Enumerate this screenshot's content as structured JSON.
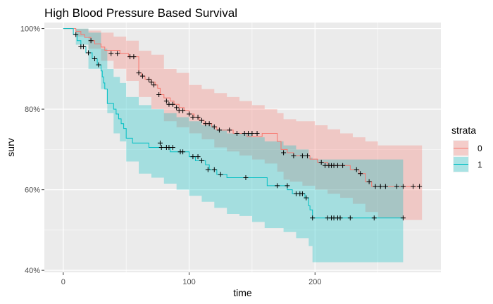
{
  "chart_data": {
    "type": "line",
    "title": "High Blood Pressure Based Survival",
    "xlabel": "time",
    "ylabel": "surv",
    "xlim": [
      -15,
      300
    ],
    "ylim": [
      0.395,
      1.015
    ],
    "x_ticks": [
      0,
      100,
      200
    ],
    "x_tick_labels": [
      "0",
      "100",
      "200"
    ],
    "y_ticks": [
      0.4,
      0.6,
      0.8,
      1.0
    ],
    "y_tick_labels": [
      "40%",
      "60%",
      "80%",
      "100%"
    ],
    "grid": true,
    "legend": {
      "title": "strata",
      "placement": "right",
      "entries": [
        {
          "label": "0",
          "color": "#F8766D"
        },
        {
          "label": "1",
          "color": "#00BFC4"
        }
      ]
    },
    "series": [
      {
        "name": "0",
        "color": "#F8766D",
        "steps": [
          [
            0,
            1.0
          ],
          [
            10,
            0.993
          ],
          [
            14,
            0.985
          ],
          [
            17,
            0.978
          ],
          [
            22,
            0.97
          ],
          [
            25,
            0.962
          ],
          [
            30,
            0.954
          ],
          [
            33,
            0.946
          ],
          [
            45,
            0.938
          ],
          [
            52,
            0.93
          ],
          [
            60,
            0.89
          ],
          [
            62,
            0.882
          ],
          [
            65,
            0.874
          ],
          [
            70,
            0.867
          ],
          [
            73,
            0.86
          ],
          [
            75,
            0.852
          ],
          [
            77,
            0.836
          ],
          [
            80,
            0.828
          ],
          [
            85,
            0.82
          ],
          [
            88,
            0.812
          ],
          [
            92,
            0.804
          ],
          [
            96,
            0.796
          ],
          [
            100,
            0.788
          ],
          [
            104,
            0.78
          ],
          [
            108,
            0.772
          ],
          [
            112,
            0.764
          ],
          [
            118,
            0.756
          ],
          [
            122,
            0.748
          ],
          [
            130,
            0.748
          ],
          [
            135,
            0.74
          ],
          [
            140,
            0.74
          ],
          [
            146,
            0.732
          ],
          [
            158,
            0.74
          ],
          [
            165,
            0.74
          ],
          [
            170,
            0.72
          ],
          [
            173,
            0.7
          ],
          [
            178,
            0.692
          ],
          [
            183,
            0.684
          ],
          [
            192,
            0.684
          ],
          [
            196,
            0.676
          ],
          [
            200,
            0.676
          ],
          [
            202,
            0.668
          ],
          [
            210,
            0.66
          ],
          [
            218,
            0.66
          ],
          [
            228,
            0.65
          ],
          [
            235,
            0.64
          ],
          [
            240,
            0.62
          ],
          [
            245,
            0.608
          ],
          [
            255,
            0.608
          ],
          [
            265,
            0.608
          ],
          [
            283,
            0.608
          ]
        ],
        "lower": [
          [
            0,
            1.0
          ],
          [
            10,
            0.98
          ],
          [
            20,
            0.95
          ],
          [
            30,
            0.92
          ],
          [
            40,
            0.9
          ],
          [
            50,
            0.87
          ],
          [
            60,
            0.83
          ],
          [
            70,
            0.8
          ],
          [
            80,
            0.77
          ],
          [
            90,
            0.755
          ],
          [
            100,
            0.74
          ],
          [
            110,
            0.725
          ],
          [
            120,
            0.705
          ],
          [
            130,
            0.695
          ],
          [
            140,
            0.685
          ],
          [
            150,
            0.675
          ],
          [
            160,
            0.665
          ],
          [
            170,
            0.645
          ],
          [
            175,
            0.625
          ],
          [
            180,
            0.62
          ],
          [
            190,
            0.61
          ],
          [
            200,
            0.6
          ],
          [
            210,
            0.59
          ],
          [
            220,
            0.58
          ],
          [
            230,
            0.565
          ],
          [
            240,
            0.545
          ],
          [
            250,
            0.53
          ],
          [
            270,
            0.525
          ],
          [
            285,
            0.525
          ]
        ],
        "upper": [
          [
            0,
            1.0
          ],
          [
            10,
            1.0
          ],
          [
            20,
            0.995
          ],
          [
            30,
            0.99
          ],
          [
            40,
            0.98
          ],
          [
            50,
            0.97
          ],
          [
            60,
            0.945
          ],
          [
            70,
            0.935
          ],
          [
            80,
            0.9
          ],
          [
            90,
            0.89
          ],
          [
            100,
            0.86
          ],
          [
            110,
            0.85
          ],
          [
            120,
            0.84
          ],
          [
            130,
            0.83
          ],
          [
            140,
            0.82
          ],
          [
            150,
            0.81
          ],
          [
            160,
            0.8
          ],
          [
            170,
            0.79
          ],
          [
            175,
            0.775
          ],
          [
            185,
            0.77
          ],
          [
            200,
            0.76
          ],
          [
            210,
            0.75
          ],
          [
            220,
            0.74
          ],
          [
            230,
            0.73
          ],
          [
            240,
            0.72
          ],
          [
            250,
            0.71
          ],
          [
            270,
            0.71
          ],
          [
            285,
            0.71
          ]
        ],
        "censored_x": [
          22,
          38,
          43,
          53,
          56,
          60,
          63,
          68,
          70,
          72,
          76,
          82,
          84,
          87,
          90,
          92,
          95,
          100,
          103,
          107,
          110,
          113,
          116,
          120,
          124,
          132,
          138,
          144,
          147,
          150,
          154,
          175,
          183,
          190,
          194,
          205,
          208,
          211,
          213,
          215,
          218,
          222,
          233,
          236,
          243,
          248,
          252,
          256,
          265,
          270,
          278,
          283
        ],
        "censored_y": [
          0.97,
          0.938,
          0.938,
          0.93,
          0.93,
          0.89,
          0.882,
          0.874,
          0.867,
          0.86,
          0.836,
          0.82,
          0.812,
          0.812,
          0.804,
          0.796,
          0.796,
          0.788,
          0.78,
          0.78,
          0.772,
          0.764,
          0.764,
          0.756,
          0.748,
          0.748,
          0.74,
          0.74,
          0.74,
          0.74,
          0.74,
          0.692,
          0.684,
          0.684,
          0.684,
          0.668,
          0.66,
          0.66,
          0.66,
          0.66,
          0.66,
          0.66,
          0.65,
          0.64,
          0.62,
          0.608,
          0.608,
          0.608,
          0.608,
          0.608,
          0.608,
          0.608
        ]
      },
      {
        "name": "1",
        "color": "#00BFC4",
        "steps": [
          [
            0,
            1.0
          ],
          [
            8,
            0.985
          ],
          [
            11,
            0.97
          ],
          [
            14,
            0.955
          ],
          [
            18,
            0.94
          ],
          [
            23,
            0.925
          ],
          [
            27,
            0.91
          ],
          [
            30,
            0.895
          ],
          [
            31,
            0.88
          ],
          [
            32,
            0.865
          ],
          [
            33,
            0.85
          ],
          [
            35,
            0.814
          ],
          [
            40,
            0.8
          ],
          [
            42,
            0.788
          ],
          [
            44,
            0.776
          ],
          [
            46,
            0.764
          ],
          [
            48,
            0.752
          ],
          [
            50,
            0.728
          ],
          [
            55,
            0.716
          ],
          [
            60,
            0.716
          ],
          [
            64,
            0.716
          ],
          [
            68,
            0.705
          ],
          [
            72,
            0.705
          ],
          [
            78,
            0.705
          ],
          [
            85,
            0.694
          ],
          [
            95,
            0.694
          ],
          [
            100,
            0.682
          ],
          [
            105,
            0.672
          ],
          [
            110,
            0.672
          ],
          [
            113,
            0.662
          ],
          [
            116,
            0.65
          ],
          [
            118,
            0.65
          ],
          [
            122,
            0.638
          ],
          [
            130,
            0.63
          ],
          [
            140,
            0.63
          ],
          [
            145,
            0.63
          ],
          [
            155,
            0.63
          ],
          [
            162,
            0.61
          ],
          [
            172,
            0.61
          ],
          [
            178,
            0.6
          ],
          [
            182,
            0.59
          ],
          [
            188,
            0.59
          ],
          [
            192,
            0.58
          ],
          [
            195,
            0.56
          ],
          [
            196,
            0.55
          ],
          [
            198,
            0.53
          ],
          [
            210,
            0.53
          ],
          [
            230,
            0.53
          ],
          [
            250,
            0.53
          ],
          [
            270,
            0.53
          ]
        ],
        "lower": [
          [
            0,
            1.0
          ],
          [
            10,
            0.96
          ],
          [
            20,
            0.9
          ],
          [
            30,
            0.85
          ],
          [
            35,
            0.79
          ],
          [
            40,
            0.74
          ],
          [
            45,
            0.72
          ],
          [
            50,
            0.67
          ],
          [
            60,
            0.64
          ],
          [
            70,
            0.63
          ],
          [
            80,
            0.615
          ],
          [
            90,
            0.6
          ],
          [
            100,
            0.585
          ],
          [
            110,
            0.57
          ],
          [
            120,
            0.555
          ],
          [
            130,
            0.54
          ],
          [
            140,
            0.535
          ],
          [
            150,
            0.52
          ],
          [
            160,
            0.505
          ],
          [
            175,
            0.495
          ],
          [
            185,
            0.48
          ],
          [
            195,
            0.46
          ],
          [
            198,
            0.42
          ],
          [
            210,
            0.42
          ],
          [
            230,
            0.42
          ],
          [
            250,
            0.42
          ],
          [
            270,
            0.42
          ]
        ],
        "upper": [
          [
            0,
            1.0
          ],
          [
            10,
            1.0
          ],
          [
            20,
            0.99
          ],
          [
            30,
            0.95
          ],
          [
            35,
            0.9
          ],
          [
            40,
            0.88
          ],
          [
            45,
            0.865
          ],
          [
            50,
            0.83
          ],
          [
            60,
            0.81
          ],
          [
            70,
            0.8
          ],
          [
            80,
            0.79
          ],
          [
            90,
            0.78
          ],
          [
            100,
            0.77
          ],
          [
            110,
            0.76
          ],
          [
            120,
            0.75
          ],
          [
            130,
            0.74
          ],
          [
            140,
            0.74
          ],
          [
            150,
            0.73
          ],
          [
            160,
            0.72
          ],
          [
            175,
            0.71
          ],
          [
            185,
            0.7
          ],
          [
            195,
            0.68
          ],
          [
            198,
            0.675
          ],
          [
            210,
            0.675
          ],
          [
            230,
            0.675
          ],
          [
            250,
            0.675
          ],
          [
            270,
            0.675
          ]
        ],
        "censored_x": [
          10,
          14,
          16,
          20,
          25,
          28,
          77,
          78,
          82,
          84,
          87,
          93,
          95,
          103,
          107,
          110,
          115,
          120,
          125,
          145,
          170,
          178,
          185,
          188,
          190,
          193,
          198,
          210,
          213,
          215,
          218,
          220,
          228,
          247,
          270
        ],
        "censored_y": [
          0.985,
          0.955,
          0.955,
          0.94,
          0.925,
          0.91,
          0.716,
          0.705,
          0.705,
          0.705,
          0.705,
          0.694,
          0.694,
          0.682,
          0.682,
          0.672,
          0.65,
          0.65,
          0.638,
          0.63,
          0.61,
          0.61,
          0.59,
          0.59,
          0.59,
          0.58,
          0.53,
          0.53,
          0.53,
          0.53,
          0.53,
          0.53,
          0.53,
          0.53,
          0.53
        ]
      }
    ]
  }
}
